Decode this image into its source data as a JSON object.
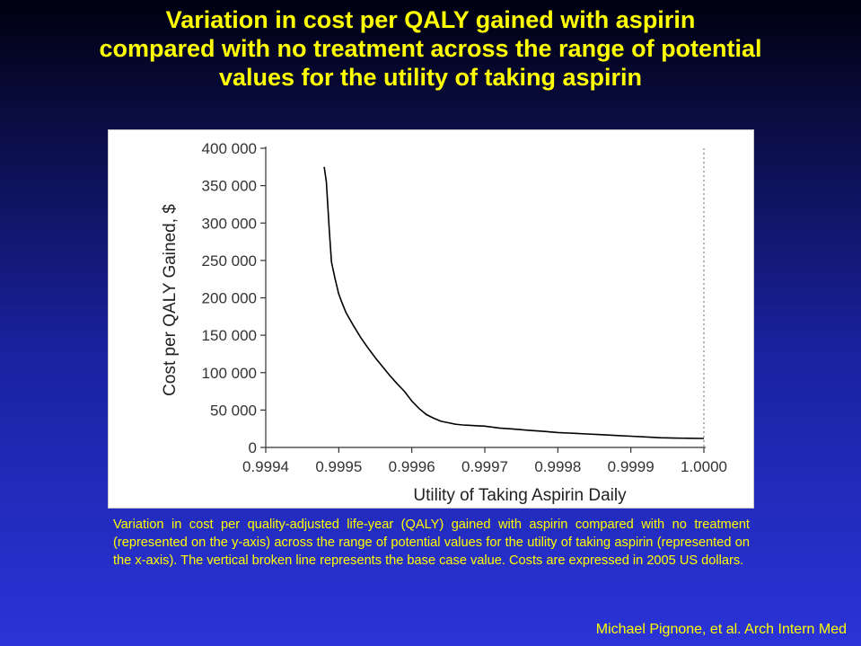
{
  "slide": {
    "title_lines": [
      "Variation in cost per QALY gained with aspirin",
      "compared with no treatment across the range of potential",
      "values for the utility of taking aspirin"
    ],
    "caption": "Variation in cost per quality-adjusted life-year (QALY) gained with aspirin compared with no treatment (represented on the y-axis) across the range of potential values for the utility of taking aspirin (represented on the x-axis). The vertical broken line represents the base case value. Costs are expressed in 2005 US dollars.",
    "citation": "Michael Pignone, et al. Arch Intern Med",
    "colors": {
      "title": "#ffff00",
      "caption": "#ffff00",
      "background_top": "#000010",
      "background_bottom": "#2a34d8",
      "curve": "#000000",
      "reference_line": "#808080"
    }
  },
  "chart_data": {
    "type": "line",
    "title": "",
    "xlabel": "Utility of Taking Aspirin Daily",
    "ylabel": "Cost per QALY Gained, $",
    "xlim": [
      0.9994,
      1.0
    ],
    "ylim": [
      0,
      400000
    ],
    "x_ticks": [
      0.9994,
      0.9995,
      0.9996,
      0.9997,
      0.9998,
      0.9999,
      1.0
    ],
    "x_tick_labels": [
      "0.9994",
      "0.9995",
      "0.9996",
      "0.9997",
      "0.9998",
      "0.9999",
      "1.0000"
    ],
    "y_ticks": [
      0,
      50000,
      100000,
      150000,
      200000,
      250000,
      300000,
      350000,
      400000
    ],
    "y_tick_labels": [
      "0",
      "50 000",
      "100 000",
      "150 000",
      "200 000",
      "250 000",
      "300 000",
      "350 000",
      "400 000"
    ],
    "grid": false,
    "legend": "none",
    "series": [
      {
        "x": [
          0.99948,
          0.999483,
          0.999487,
          0.99949,
          0.999495,
          0.9995,
          0.999505,
          0.99951,
          0.99952,
          0.99953,
          0.99954,
          0.99955,
          0.99956,
          0.99957,
          0.99958,
          0.99959,
          0.9996,
          0.99961,
          0.99962,
          0.99963,
          0.99964,
          0.99965,
          0.99966,
          0.99967,
          0.99968,
          0.99969,
          0.9997,
          0.99972,
          0.99974,
          0.99976,
          0.99978,
          0.9998,
          0.99982,
          0.99984,
          0.99986,
          0.99988,
          0.9999,
          0.99992,
          0.99994,
          0.99996,
          0.99998,
          1.0
        ],
        "y": [
          375000,
          355000,
          290000,
          248000,
          225000,
          205000,
          192000,
          180000,
          163000,
          147000,
          133000,
          120000,
          108000,
          96000,
          85000,
          75000,
          62000,
          52000,
          44000,
          39000,
          35000,
          33000,
          31000,
          30000,
          29500,
          29000,
          28500,
          26000,
          24500,
          23000,
          21500,
          20000,
          19000,
          18000,
          17000,
          16000,
          15000,
          14000,
          13000,
          12500,
          12200,
          12000
        ]
      }
    ],
    "reference_line": {
      "x": 1.0,
      "style": "dotted",
      "meaning": "base case value"
    }
  }
}
